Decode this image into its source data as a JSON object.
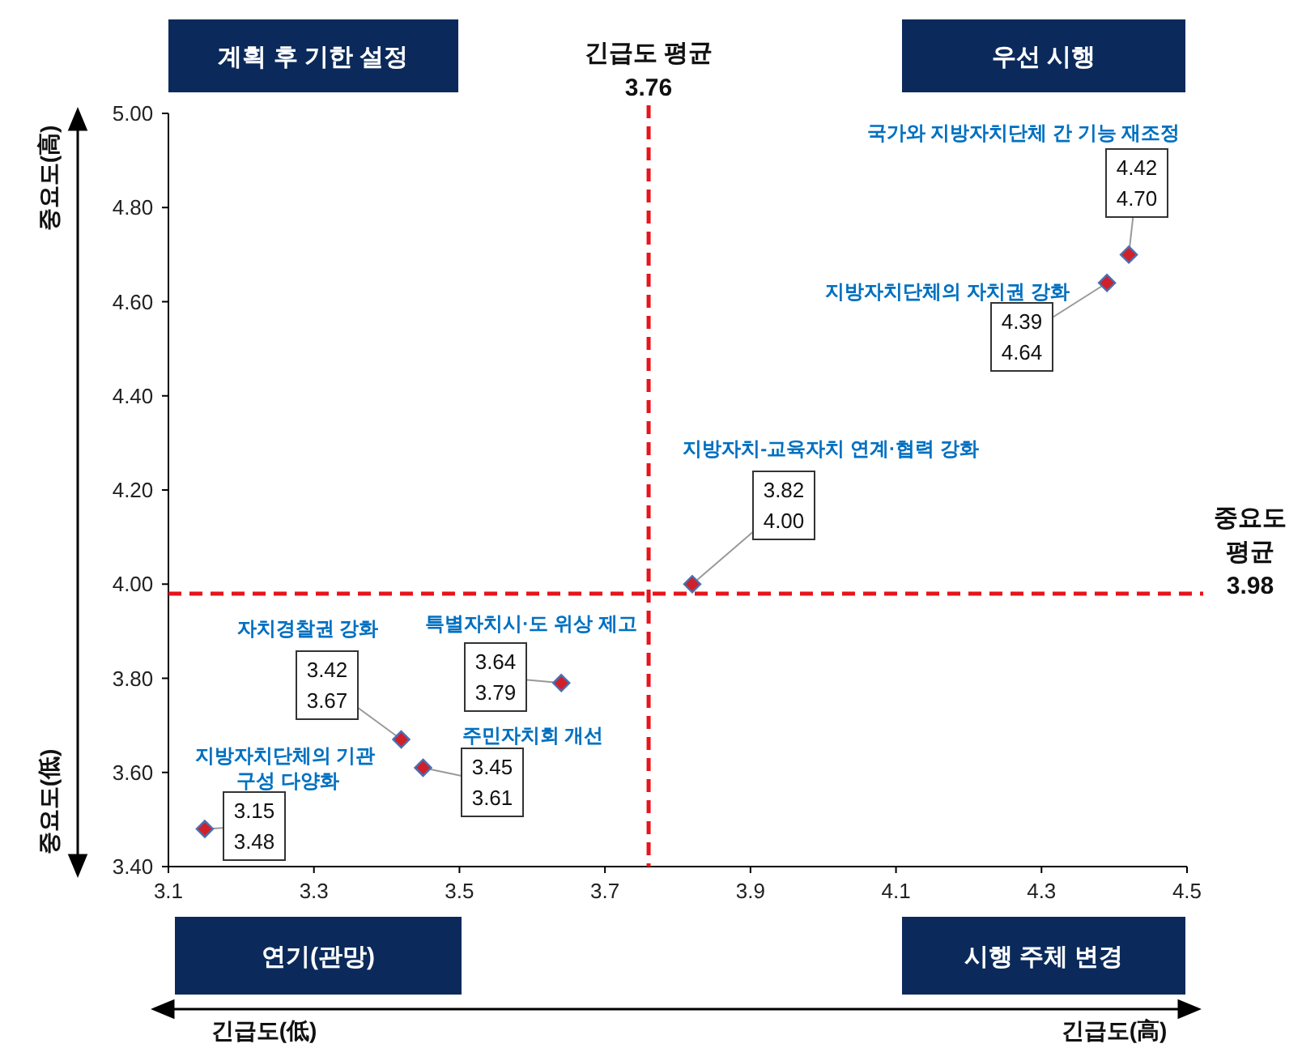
{
  "chart_data": {
    "type": "scatter",
    "marker": "diamond",
    "grid": false,
    "x": [
      3.15,
      3.42,
      3.45,
      3.64,
      3.82,
      4.39,
      4.42
    ],
    "series": [
      {
        "color": "#d0202a",
        "values": [
          3.48,
          3.67,
          3.61,
          3.79,
          4.0,
          4.64,
          4.7
        ],
        "value_labels": [
          "3.15\n3.48",
          "3.42\n3.67",
          "3.45\n3.61",
          "3.64\n3.79",
          "3.82\n4.00",
          "4.39\n4.64",
          "4.42\n4.70"
        ]
      }
    ],
    "xlim": [
      3.1,
      4.5
    ],
    "xticks": [
      3.1,
      3.3,
      3.5,
      3.7,
      3.9,
      4.1,
      4.3,
      4.5
    ],
    "ylim": [
      3.4,
      5.0
    ],
    "yticks": [
      {
        "value": 3.4,
        "label": "3.40"
      },
      {
        "value": 3.6,
        "label": "3.60"
      },
      {
        "value": 3.8,
        "label": "3.80"
      },
      {
        "value": 4.0,
        "label": "4.00"
      },
      {
        "value": 4.2,
        "label": "4.20"
      },
      {
        "value": 4.4,
        "label": "4.40"
      },
      {
        "value": 4.6,
        "label": "4.60"
      },
      {
        "value": 4.8,
        "label": "4.80"
      },
      {
        "value": 5.0,
        "label": "5.00"
      }
    ],
    "ref_lines": [
      {
        "axis": "x",
        "value": 3.76,
        "label": "긴급도 평균\n3.76",
        "color": "#e8141b",
        "line_style": "dashed"
      },
      {
        "axis": "y",
        "value": 3.98,
        "label": "중요도\n평균\n3.98",
        "color": "#e8141b",
        "line_style": "dashed"
      }
    ],
    "annotations": [
      "계획 후 기한 설정",
      "우선 시행",
      "연기(관망)",
      "시행 주체 변경",
      "중요도(高)",
      "중요도(低)",
      "긴급도(低)",
      "긴급도(高)",
      "지방자치단체의 기관\n 구성 다양화",
      "자치경찰권 강화",
      "주민자치회 개선",
      "특별자치시·도 위상 제고",
      "지방자치-교육자치 연계·협력 강화",
      "지방자치단체의 자치권 강화",
      "국가와 지방자치단체 간 기능 재조정"
    ]
  }
}
